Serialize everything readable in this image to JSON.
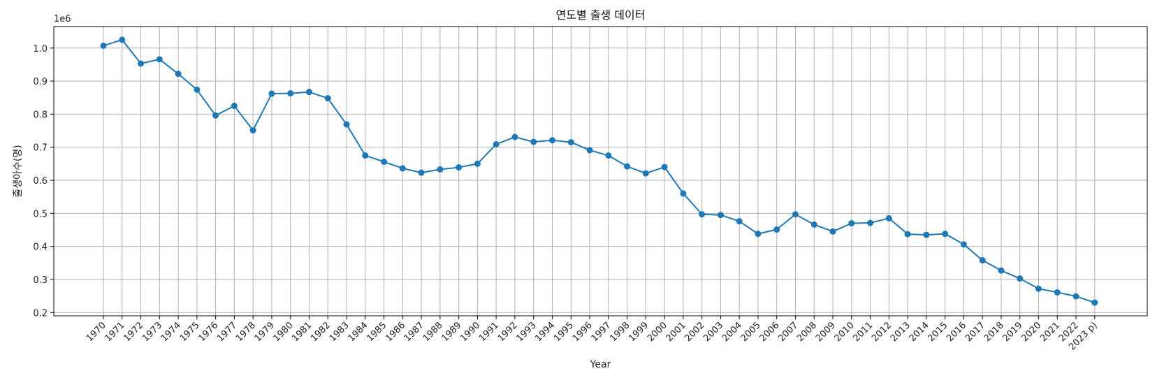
{
  "chart_data": {
    "type": "line",
    "title": "연도별 출생 데이터",
    "xlabel": "Year",
    "ylabel": "출생아수(명)",
    "y_offset_label": "1e6",
    "ylim": [
      0.19,
      1.065
    ],
    "yticks": [
      0.2,
      0.3,
      0.4,
      0.5,
      0.6,
      0.7,
      0.8,
      0.9,
      1.0
    ],
    "ytick_labels": [
      "0.2",
      "0.3",
      "0.4",
      "0.5",
      "0.6",
      "0.7",
      "0.8",
      "0.9",
      "1.0"
    ],
    "grid": true,
    "color": "#1f77b4",
    "categories": [
      "1970",
      "1971",
      "1972",
      "1973",
      "1974",
      "1975",
      "1976",
      "1977",
      "1978",
      "1979",
      "1980",
      "1981",
      "1982",
      "1983",
      "1984",
      "1985",
      "1986",
      "1987",
      "1988",
      "1989",
      "1990",
      "1991",
      "1992",
      "1993",
      "1994",
      "1995",
      "1996",
      "1997",
      "1998",
      "1999",
      "2000",
      "2001",
      "2002",
      "2003",
      "2004",
      "2005",
      "2006",
      "2007",
      "2008",
      "2009",
      "2010",
      "2011",
      "2012",
      "2013",
      "2014",
      "2015",
      "2016",
      "2017",
      "2018",
      "2019",
      "2020",
      "2021",
      "2022",
      "2023 p)"
    ],
    "values": [
      1.007,
      1.025,
      0.953,
      0.966,
      0.922,
      0.874,
      0.796,
      0.825,
      0.751,
      0.862,
      0.863,
      0.867,
      0.848,
      0.769,
      0.675,
      0.656,
      0.636,
      0.623,
      0.633,
      0.639,
      0.65,
      0.709,
      0.731,
      0.716,
      0.721,
      0.715,
      0.691,
      0.675,
      0.642,
      0.621,
      0.64,
      0.56,
      0.497,
      0.495,
      0.476,
      0.438,
      0.451,
      0.497,
      0.466,
      0.445,
      0.47,
      0.471,
      0.485,
      0.437,
      0.435,
      0.438,
      0.406,
      0.358,
      0.327,
      0.303,
      0.272,
      0.261,
      0.249,
      0.23
    ]
  }
}
